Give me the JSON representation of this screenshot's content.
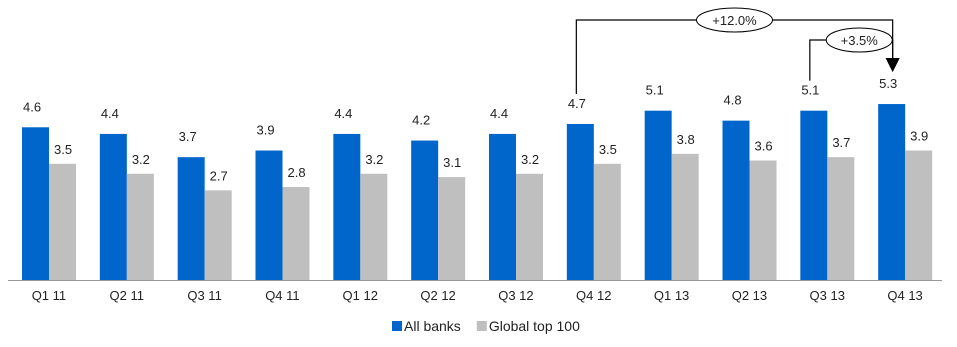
{
  "chart_data": {
    "type": "bar",
    "categories": [
      "Q1 11",
      "Q2 11",
      "Q3 11",
      "Q4 11",
      "Q1 12",
      "Q2 12",
      "Q3 12",
      "Q4 12",
      "Q1 13",
      "Q2 13",
      "Q3 13",
      "Q4 13"
    ],
    "series": [
      {
        "name": "All banks",
        "color": "#0066CC",
        "values": [
          4.6,
          4.4,
          3.7,
          3.9,
          4.4,
          4.2,
          4.4,
          4.7,
          5.1,
          4.8,
          5.1,
          5.3
        ]
      },
      {
        "name": "Global top 100",
        "color": "#BFBFBF",
        "values": [
          3.5,
          3.2,
          2.7,
          2.8,
          3.2,
          3.1,
          3.2,
          3.5,
          3.8,
          3.6,
          3.7,
          3.9
        ]
      }
    ],
    "ylim": [
      0,
      6.0
    ],
    "grid": false,
    "legend_position": "bottom-center",
    "annotations": [
      {
        "text": "+12.0%",
        "from_category": "Q4 12",
        "to_category": "Q4 13"
      },
      {
        "text": "+3.5%",
        "from_category": "Q3 13",
        "to_category": "Q4 13"
      }
    ]
  }
}
